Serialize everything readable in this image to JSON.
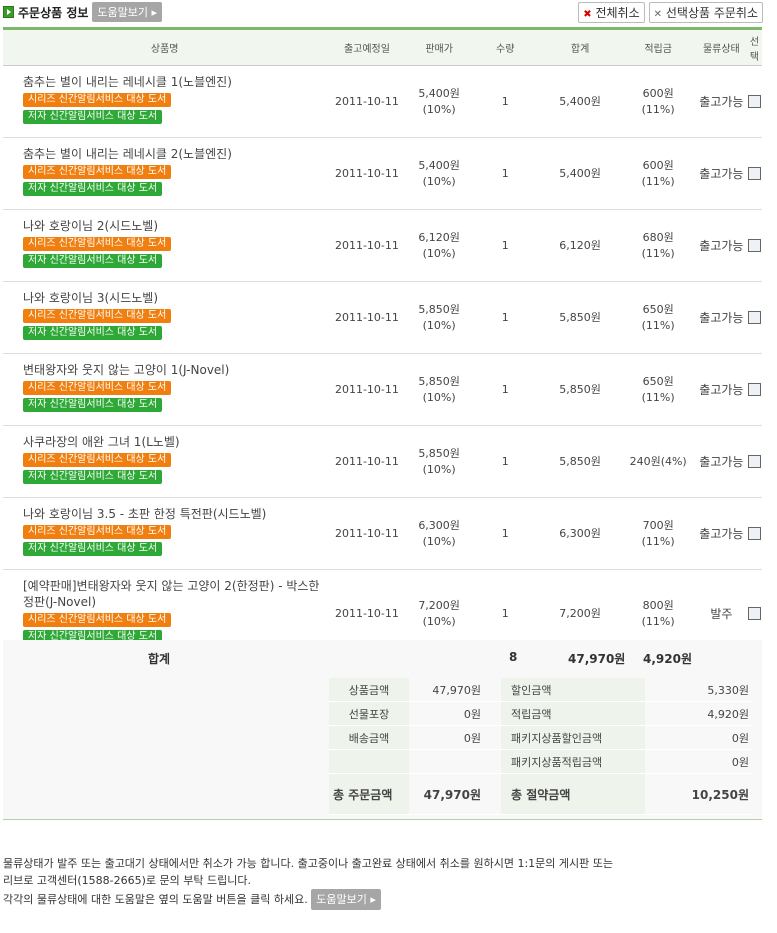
{
  "header": {
    "title": "주문상품 정보",
    "help": "도움말보기 ▸",
    "cancel_all": "전체취소",
    "cancel_selected": "선택상품 주문취소"
  },
  "columns": [
    "상품명",
    "출고예정일",
    "판매가",
    "수량",
    "합계",
    "적립금",
    "물류상태",
    "선택"
  ],
  "tags": {
    "series": "시리즈 신간알림서비스 대상 도서",
    "author": "저자 신간알림서비스 대상 도서"
  },
  "rows": [
    {
      "name": "춤추는 별이 내리는 레네시클 1(노블엔진)",
      "date": "2011-10-11",
      "price": "5,400원",
      "disc": "(10%)",
      "qty": "1",
      "total": "5,400원",
      "points": "600원",
      "prate": "(11%)",
      "status": "출고가능"
    },
    {
      "name": "춤추는 별이 내리는 레네시클 2(노블엔진)",
      "date": "2011-10-11",
      "price": "5,400원",
      "disc": "(10%)",
      "qty": "1",
      "total": "5,400원",
      "points": "600원",
      "prate": "(11%)",
      "status": "출고가능"
    },
    {
      "name": "나와 호랑이님 2(시드노벨)",
      "date": "2011-10-11",
      "price": "6,120원",
      "disc": "(10%)",
      "qty": "1",
      "total": "6,120원",
      "points": "680원",
      "prate": "(11%)",
      "status": "출고가능"
    },
    {
      "name": "나와 호랑이님 3(시드노벨)",
      "date": "2011-10-11",
      "price": "5,850원",
      "disc": "(10%)",
      "qty": "1",
      "total": "5,850원",
      "points": "650원",
      "prate": "(11%)",
      "status": "출고가능"
    },
    {
      "name": "변태왕자와 웃지 않는 고양이 1(J-Novel)",
      "date": "2011-10-11",
      "price": "5,850원",
      "disc": "(10%)",
      "qty": "1",
      "total": "5,850원",
      "points": "650원",
      "prate": "(11%)",
      "status": "출고가능"
    },
    {
      "name": "사쿠라장의 애완 그녀 1(L노벨)",
      "date": "2011-10-11",
      "price": "5,850원",
      "disc": "(10%)",
      "qty": "1",
      "total": "5,850원",
      "points": "240원(4%)",
      "prate": "",
      "status": "출고가능"
    },
    {
      "name": "나와 호랑이님 3.5 - 초판 한정 특전판(시드노벨)",
      "date": "2011-10-11",
      "price": "6,300원",
      "disc": "(10%)",
      "qty": "1",
      "total": "6,300원",
      "points": "700원",
      "prate": "(11%)",
      "status": "출고가능"
    },
    {
      "name": "[예약판매]변태왕자와 웃지 않는 고양이 2(한정판) - 박스한정판(J-Novel)",
      "date": "2011-10-11",
      "price": "7,200원",
      "disc": "(10%)",
      "qty": "1",
      "total": "7,200원",
      "points": "800원",
      "prate": "(11%)",
      "status": "발주"
    }
  ],
  "summary": {
    "label": "합계",
    "qty": "8",
    "total": "47,970원",
    "points": "4,920원",
    "left": [
      {
        "label": "상품금액",
        "value": "47,970원"
      },
      {
        "label": "선물포장",
        "value": "0원"
      },
      {
        "label": "배송금액",
        "value": "0원"
      },
      {
        "label": "",
        "value": ""
      }
    ],
    "right": [
      {
        "label": "할인금액",
        "value": "5,330원"
      },
      {
        "label": "적립금액",
        "value": "4,920원"
      },
      {
        "label": "패키지상품할인금액",
        "value": "0원"
      },
      {
        "label": "패키지상품적립금액",
        "value": "0원"
      }
    ],
    "total_order_label": "총 주문금액",
    "total_order": "47,970원",
    "total_save_label": "총 절약금액",
    "total_save": "10,250원"
  },
  "note": {
    "line1": "물류상태가 발주 또는 출고대기 상태에서만 취소가 가능 합니다. 출고중이나 출고완료 상태에서 취소를 원하시면 1:1문의 게시판 또는",
    "line2": "리브로 고객센터(1588-2665)로 문의 부탁 드립니다.",
    "line3": "각각의 물류상태에 대한 도움말은 옆의 도움말 버튼을 클릭 하세요.",
    "help": "도움말보기 ▸"
  }
}
